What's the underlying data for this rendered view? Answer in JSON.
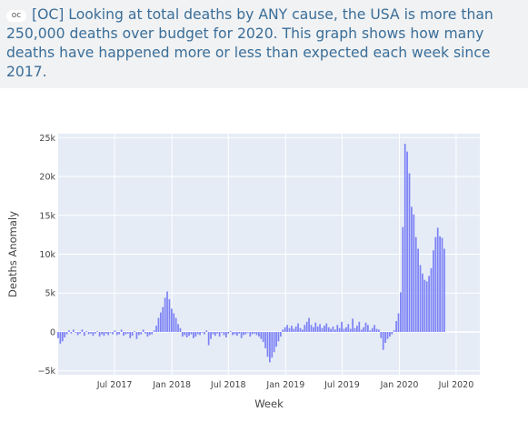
{
  "post": {
    "badge": "oc",
    "title": "[OC] Looking at total deaths by ANY cause, the USA is more than 250,000 deaths over budget for 2020. This graph shows how many deaths have happened more or less than expected each week since 2017."
  },
  "colors": {
    "bar": "#7d82f5",
    "plot_bg": "#e5ecf6",
    "grid": "#ffffff",
    "header_bg": "#f1f2f3",
    "title": "#3a6e99"
  },
  "chart_data": {
    "type": "bar",
    "xlabel": "Week",
    "ylabel": "Deaths Anomaly",
    "ylim": [
      -5500,
      25500
    ],
    "xlim": [
      "2017-01-01",
      "2020-09-15"
    ],
    "x_ticks": [
      "Jul 2017",
      "Jan 2018",
      "Jul 2018",
      "Jan 2019",
      "Jul 2019",
      "Jan 2020",
      "Jul 2020"
    ],
    "y_ticks": [
      "−5k",
      "0",
      "5k",
      "10k",
      "15k",
      "20k",
      "25k"
    ],
    "grid": true,
    "x_start": "2017-01-01",
    "week_interval_days": 7,
    "values": [
      -800,
      -1500,
      -1200,
      -700,
      -300,
      200,
      -200,
      300,
      -100,
      -400,
      -200,
      300,
      -500,
      100,
      -300,
      -200,
      -500,
      -200,
      100,
      -600,
      -300,
      -500,
      -200,
      -400,
      -100,
      -300,
      200,
      -400,
      -300,
      300,
      -500,
      -300,
      -200,
      -800,
      -500,
      100,
      -900,
      -400,
      -300,
      300,
      -200,
      -600,
      -400,
      -300,
      200,
      800,
      1800,
      2500,
      3200,
      4400,
      5200,
      4200,
      3000,
      2400,
      1800,
      1000,
      500,
      -600,
      -400,
      -700,
      -500,
      -300,
      -800,
      -600,
      -300,
      -400,
      -100,
      -300,
      200,
      -1700,
      -900,
      -300,
      -500,
      -200,
      -600,
      -100,
      -400,
      -700,
      -200,
      100,
      -400,
      -300,
      -500,
      -200,
      -800,
      -400,
      -300,
      -100,
      -600,
      -300,
      -200,
      -400,
      -600,
      -900,
      -1300,
      -2100,
      -3200,
      -3900,
      -3300,
      -2600,
      -1900,
      -1200,
      -600,
      300,
      600,
      900,
      500,
      800,
      400,
      700,
      1100,
      500,
      300,
      900,
      1300,
      1800,
      900,
      600,
      1200,
      700,
      1000,
      500,
      800,
      1100,
      600,
      400,
      700,
      300,
      900,
      500,
      1300,
      400,
      600,
      1000,
      400,
      1700,
      500,
      800,
      1300,
      300,
      600,
      1200,
      900,
      200,
      500,
      900,
      400,
      300,
      -800,
      -2300,
      -1400,
      -900,
      -600,
      -300,
      200,
      1400,
      2400,
      5100,
      13500,
      24200,
      23200,
      20400,
      16100,
      15100,
      12200,
      10700,
      8600,
      7500,
      6700,
      6500,
      7200,
      8200,
      10500,
      12200,
      13400,
      12300,
      12100,
      10700
    ]
  }
}
